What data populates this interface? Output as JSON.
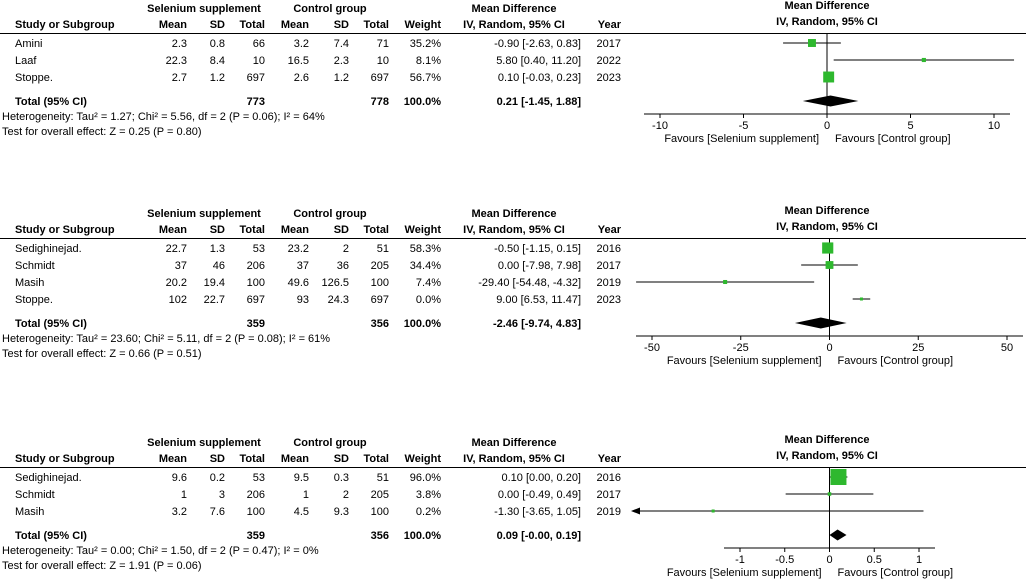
{
  "colors": {
    "marker": "#2eb82e",
    "line": "#000000",
    "text": "#000000",
    "background": "#ffffff"
  },
  "chart_data": [
    {
      "type": "forest",
      "effect_measure": "Mean Difference",
      "method_label": "IV, Random, 95% CI",
      "group1_label": "Selenium supplement",
      "group2_label": "Control group",
      "col_headers": {
        "study": "Study or Subgroup",
        "mean": "Mean",
        "sd": "SD",
        "total": "Total",
        "weight": "Weight",
        "ci": "IV, Random, 95% CI",
        "year": "Year"
      },
      "studies": [
        {
          "name": "Amini",
          "mean1": "2.3",
          "sd1": "0.8",
          "total1": "66",
          "mean2": "3.2",
          "sd2": "7.4",
          "total2": "71",
          "weight": "35.2%",
          "ci_text": "-0.90 [-2.63, 0.83]",
          "year": "2017",
          "md": -0.9,
          "low": -2.63,
          "high": 0.83,
          "weight_pct": 35.2
        },
        {
          "name": "Laaf",
          "mean1": "22.3",
          "sd1": "8.4",
          "total1": "10",
          "mean2": "16.5",
          "sd2": "2.3",
          "total2": "10",
          "weight": "8.1%",
          "ci_text": "5.80 [0.40, 11.20]",
          "year": "2022",
          "md": 5.8,
          "low": 0.4,
          "high": 11.2,
          "weight_pct": 8.1
        },
        {
          "name": "Stoppe.",
          "mean1": "2.7",
          "sd1": "1.2",
          "total1": "697",
          "mean2": "2.6",
          "sd2": "1.2",
          "total2": "697",
          "weight": "56.7%",
          "ci_text": "0.10 [-0.03, 0.23]",
          "year": "2023",
          "md": 0.1,
          "low": -0.03,
          "high": 0.23,
          "weight_pct": 56.7
        }
      ],
      "total": {
        "label": "Total (95% CI)",
        "total1": "773",
        "total2": "778",
        "weight": "100.0%",
        "ci_text": "0.21 [-1.45, 1.88]",
        "md": 0.21,
        "low": -1.45,
        "high": 1.88
      },
      "heterogeneity": "Heterogeneity: Tau² = 1.27; Chi² = 5.56, df = 2 (P = 0.06); I² = 64%",
      "overall_test": "Test for overall effect: Z = 0.25 (P = 0.80)",
      "axis": {
        "min": -10,
        "max": 10,
        "ticks": [
          -10,
          -5,
          0,
          5,
          10
        ]
      },
      "favours_left": "Favours [Selenium supplement]",
      "favours_right": "Favours [Control group]"
    },
    {
      "type": "forest",
      "effect_measure": "Mean Difference",
      "method_label": "IV, Random, 95% CI",
      "group1_label": "Selenium supplement",
      "group2_label": "Control group",
      "col_headers": {
        "study": "Study or Subgroup",
        "mean": "Mean",
        "sd": "SD",
        "total": "Total",
        "weight": "Weight",
        "ci": "IV, Random, 95% CI",
        "year": "Year"
      },
      "studies": [
        {
          "name": "Sedighinejad.",
          "mean1": "22.7",
          "sd1": "1.3",
          "total1": "53",
          "mean2": "23.2",
          "sd2": "2",
          "total2": "51",
          "weight": "58.3%",
          "ci_text": "-0.50 [-1.15, 0.15]",
          "year": "2016",
          "md": -0.5,
          "low": -1.15,
          "high": 0.15,
          "weight_pct": 58.3
        },
        {
          "name": "Schmidt",
          "mean1": "37",
          "sd1": "46",
          "total1": "206",
          "mean2": "37",
          "sd2": "36",
          "total2": "205",
          "weight": "34.4%",
          "ci_text": "0.00 [-7.98, 7.98]",
          "year": "2017",
          "md": 0.0,
          "low": -7.98,
          "high": 7.98,
          "weight_pct": 34.4
        },
        {
          "name": "Masih",
          "mean1": "20.2",
          "sd1": "19.4",
          "total1": "100",
          "mean2": "49.6",
          "sd2": "126.5",
          "total2": "100",
          "weight": "7.4%",
          "ci_text": "-29.40 [-54.48, -4.32]",
          "year": "2019",
          "md": -29.4,
          "low": -54.48,
          "high": -4.32,
          "weight_pct": 7.4
        },
        {
          "name": "Stoppe.",
          "mean1": "102",
          "sd1": "22.7",
          "total1": "697",
          "mean2": "93",
          "sd2": "24.3",
          "total2": "697",
          "weight": "0.0%",
          "ci_text": "9.00 [6.53, 11.47]",
          "year": "2023",
          "md": 9.0,
          "low": 6.53,
          "high": 11.47,
          "weight_pct": 0.0
        }
      ],
      "total": {
        "label": "Total (95% CI)",
        "total1": "359",
        "total2": "356",
        "weight": "100.0%",
        "ci_text": "-2.46 [-9.74, 4.83]",
        "md": -2.46,
        "low": -9.74,
        "high": 4.83
      },
      "heterogeneity": "Heterogeneity: Tau² = 23.60; Chi² = 5.11, df = 2 (P = 0.08); I² = 61%",
      "overall_test": "Test for overall effect: Z = 0.66 (P = 0.51)",
      "axis": {
        "min": -50,
        "max": 50,
        "ticks": [
          -50,
          -25,
          0,
          25,
          50
        ]
      },
      "favours_left": "Favours [Selenium supplement]",
      "favours_right": "Favours [Control group]"
    },
    {
      "type": "forest",
      "effect_measure": "Mean Difference",
      "method_label": "IV, Random, 95% CI",
      "group1_label": "Selenium supplement",
      "group2_label": "Control group",
      "col_headers": {
        "study": "Study or Subgroup",
        "mean": "Mean",
        "sd": "SD",
        "total": "Total",
        "weight": "Weight",
        "ci": "IV, Random, 95% CI",
        "year": "Year"
      },
      "studies": [
        {
          "name": "Sedighinejad.",
          "mean1": "9.6",
          "sd1": "0.2",
          "total1": "53",
          "mean2": "9.5",
          "sd2": "0.3",
          "total2": "51",
          "weight": "96.0%",
          "ci_text": "0.10 [0.00, 0.20]",
          "year": "2016",
          "md": 0.1,
          "low": 0.0,
          "high": 0.2,
          "weight_pct": 96.0
        },
        {
          "name": "Schmidt",
          "mean1": "1",
          "sd1": "3",
          "total1": "206",
          "mean2": "1",
          "sd2": "2",
          "total2": "205",
          "weight": "3.8%",
          "ci_text": "0.00 [-0.49, 0.49]",
          "year": "2017",
          "md": 0.0,
          "low": -0.49,
          "high": 0.49,
          "weight_pct": 3.8
        },
        {
          "name": "Masih",
          "mean1": "3.2",
          "sd1": "7.6",
          "total1": "100",
          "mean2": "4.5",
          "sd2": "9.3",
          "total2": "100",
          "weight": "0.2%",
          "ci_text": "-1.30 [-3.65, 1.05]",
          "year": "2019",
          "md": -1.3,
          "low": -3.65,
          "high": 1.05,
          "weight_pct": 0.2
        }
      ],
      "total": {
        "label": "Total (95% CI)",
        "total1": "359",
        "total2": "356",
        "weight": "100.0%",
        "ci_text": "0.09 [-0.00, 0.19]",
        "md": 0.09,
        "low": -0.0,
        "high": 0.19
      },
      "heterogeneity": "Heterogeneity: Tau² = 0.00; Chi² = 1.50, df = 2 (P = 0.47); I² = 0%",
      "overall_test": "Test for overall effect: Z = 1.91 (P = 0.06)",
      "axis": {
        "min": -1,
        "max": 1,
        "ticks": [
          -1,
          -0.5,
          0,
          0.5,
          1
        ]
      },
      "favours_left": "Favours [Selenium supplement]",
      "favours_right": "Favours [Control group]"
    }
  ]
}
